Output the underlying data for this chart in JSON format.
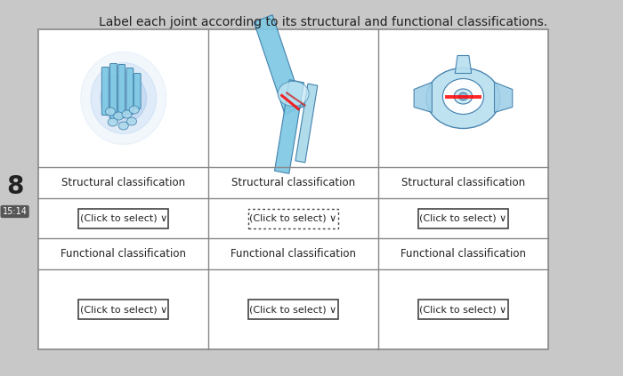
{
  "title": "Label each joint according to its structural and functional classifications.",
  "title_fontsize": 10,
  "bg_color": "#c8c8c8",
  "border_color": "#888888",
  "text_color": "#222222",
  "structural_label": "Structural classification",
  "functional_label": "Functional classification",
  "dropdown_label": "(Click to select) ∨",
  "label_fontsize": 8.5,
  "dropdown_fontsize": 8,
  "left_number": "8",
  "time_label": "15:14",
  "col1_dropdown_dotted": true
}
